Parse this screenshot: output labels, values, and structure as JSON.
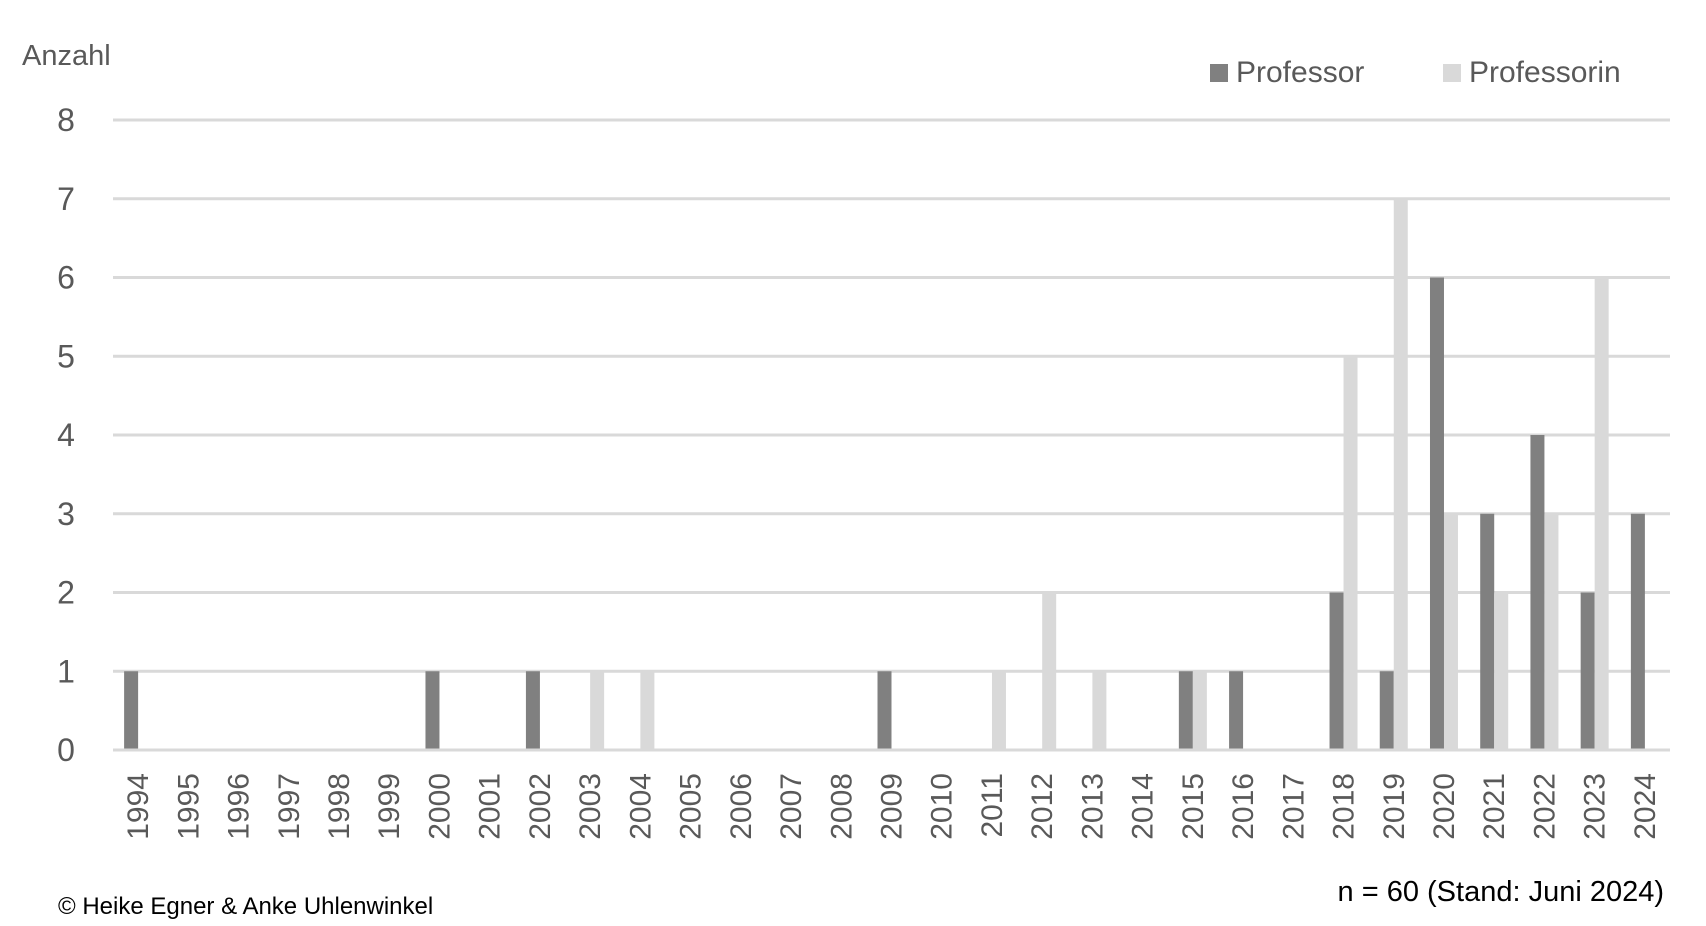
{
  "chart_data": {
    "type": "bar",
    "ylabel": "Anzahl",
    "ylim": [
      0,
      8
    ],
    "yticks": [
      "0",
      "1",
      "2",
      "3",
      "4",
      "5",
      "6",
      "7",
      "8"
    ],
    "grid": true,
    "legend_position": "top-right",
    "categories": [
      "1994",
      "1995",
      "1996",
      "1997",
      "1998",
      "1999",
      "2000",
      "2001",
      "2002",
      "2003",
      "2004",
      "2005",
      "2006",
      "2007",
      "2008",
      "2009",
      "2010",
      "2011",
      "2012",
      "2013",
      "2014",
      "2015",
      "2016",
      "2017",
      "2018",
      "2019",
      "2020",
      "2021",
      "2022",
      "2023",
      "2024"
    ],
    "series": [
      {
        "name": "Professor",
        "color": "#808080",
        "values": [
          1,
          0,
          0,
          0,
          0,
          0,
          1,
          0,
          1,
          0,
          0,
          0,
          0,
          0,
          0,
          1,
          0,
          0,
          0,
          0,
          0,
          1,
          1,
          0,
          2,
          1,
          6,
          3,
          4,
          2,
          3
        ]
      },
      {
        "name": "Professorin",
        "color": "#d9d9d9",
        "values": [
          0,
          0,
          0,
          0,
          0,
          0,
          0,
          0,
          0,
          1,
          1,
          0,
          0,
          0,
          0,
          0,
          0,
          1,
          2,
          1,
          0,
          1,
          0,
          0,
          5,
          7,
          3,
          2,
          3,
          6,
          0
        ]
      }
    ],
    "annotations": {
      "sample": "n = 60 (Stand: Juni 2024)",
      "copyright": "© Heike Egner & Anke Uhlenwinkel"
    }
  }
}
